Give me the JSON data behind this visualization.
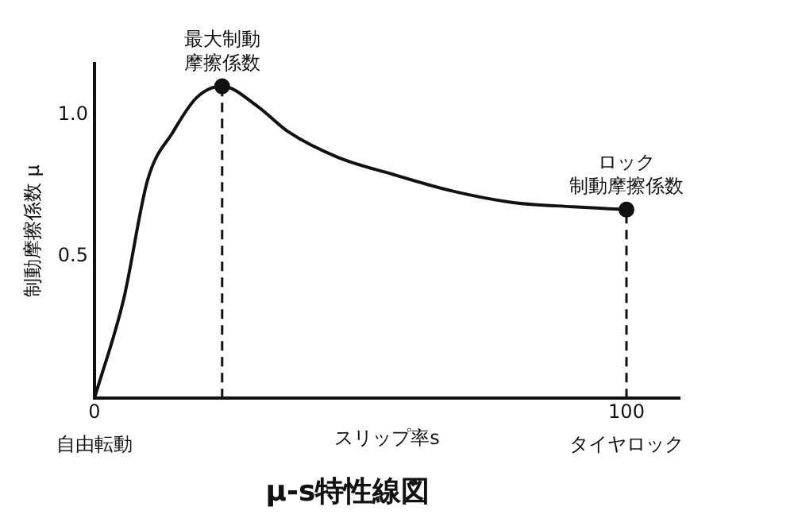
{
  "chart_data": {
    "type": "line",
    "title": "μ-s特性線図",
    "xlabel": "スリップ率s",
    "ylabel": "制動摩擦係数 μ",
    "xlim": [
      0,
      110
    ],
    "ylim": [
      0,
      1.18
    ],
    "xticks": [
      0,
      100
    ],
    "yticks": [
      {
        "value": 0.5,
        "label": "0.5"
      },
      {
        "value": 1,
        "label": "1.0"
      }
    ],
    "grid": false,
    "legend": false,
    "series": [
      {
        "color": "#111111",
        "x": [
          0,
          5.5,
          10,
          14.8,
          19.2,
          24,
          30.6,
          36.4,
          45.7,
          56,
          67.4,
          78.7,
          90,
          100
        ],
        "values": [
          0,
          0.35,
          0.77,
          0.94,
          1.06,
          1.1,
          1.03,
          0.94,
          0.85,
          0.79,
          0.73,
          0.69,
          0.675,
          0.665
        ],
        "marker": "none"
      },
      {
        "type": "scatter",
        "color": "#111111",
        "x": [
          24,
          100
        ],
        "values": [
          1.1,
          0.665
        ],
        "marker": "circle"
      }
    ],
    "ref_lines": [
      {
        "axis": "x",
        "value": 24,
        "line_style": "dashed"
      },
      {
        "axis": "x",
        "value": 100,
        "line_style": "dashed"
      }
    ],
    "annotations": [
      {
        "text": "最大制動摩擦係数",
        "x": 24,
        "y": 1.1
      },
      {
        "text": "ロック制動摩擦係数",
        "x": 100,
        "y": 0.665
      },
      "自由転動",
      "タイヤロック"
    ]
  }
}
